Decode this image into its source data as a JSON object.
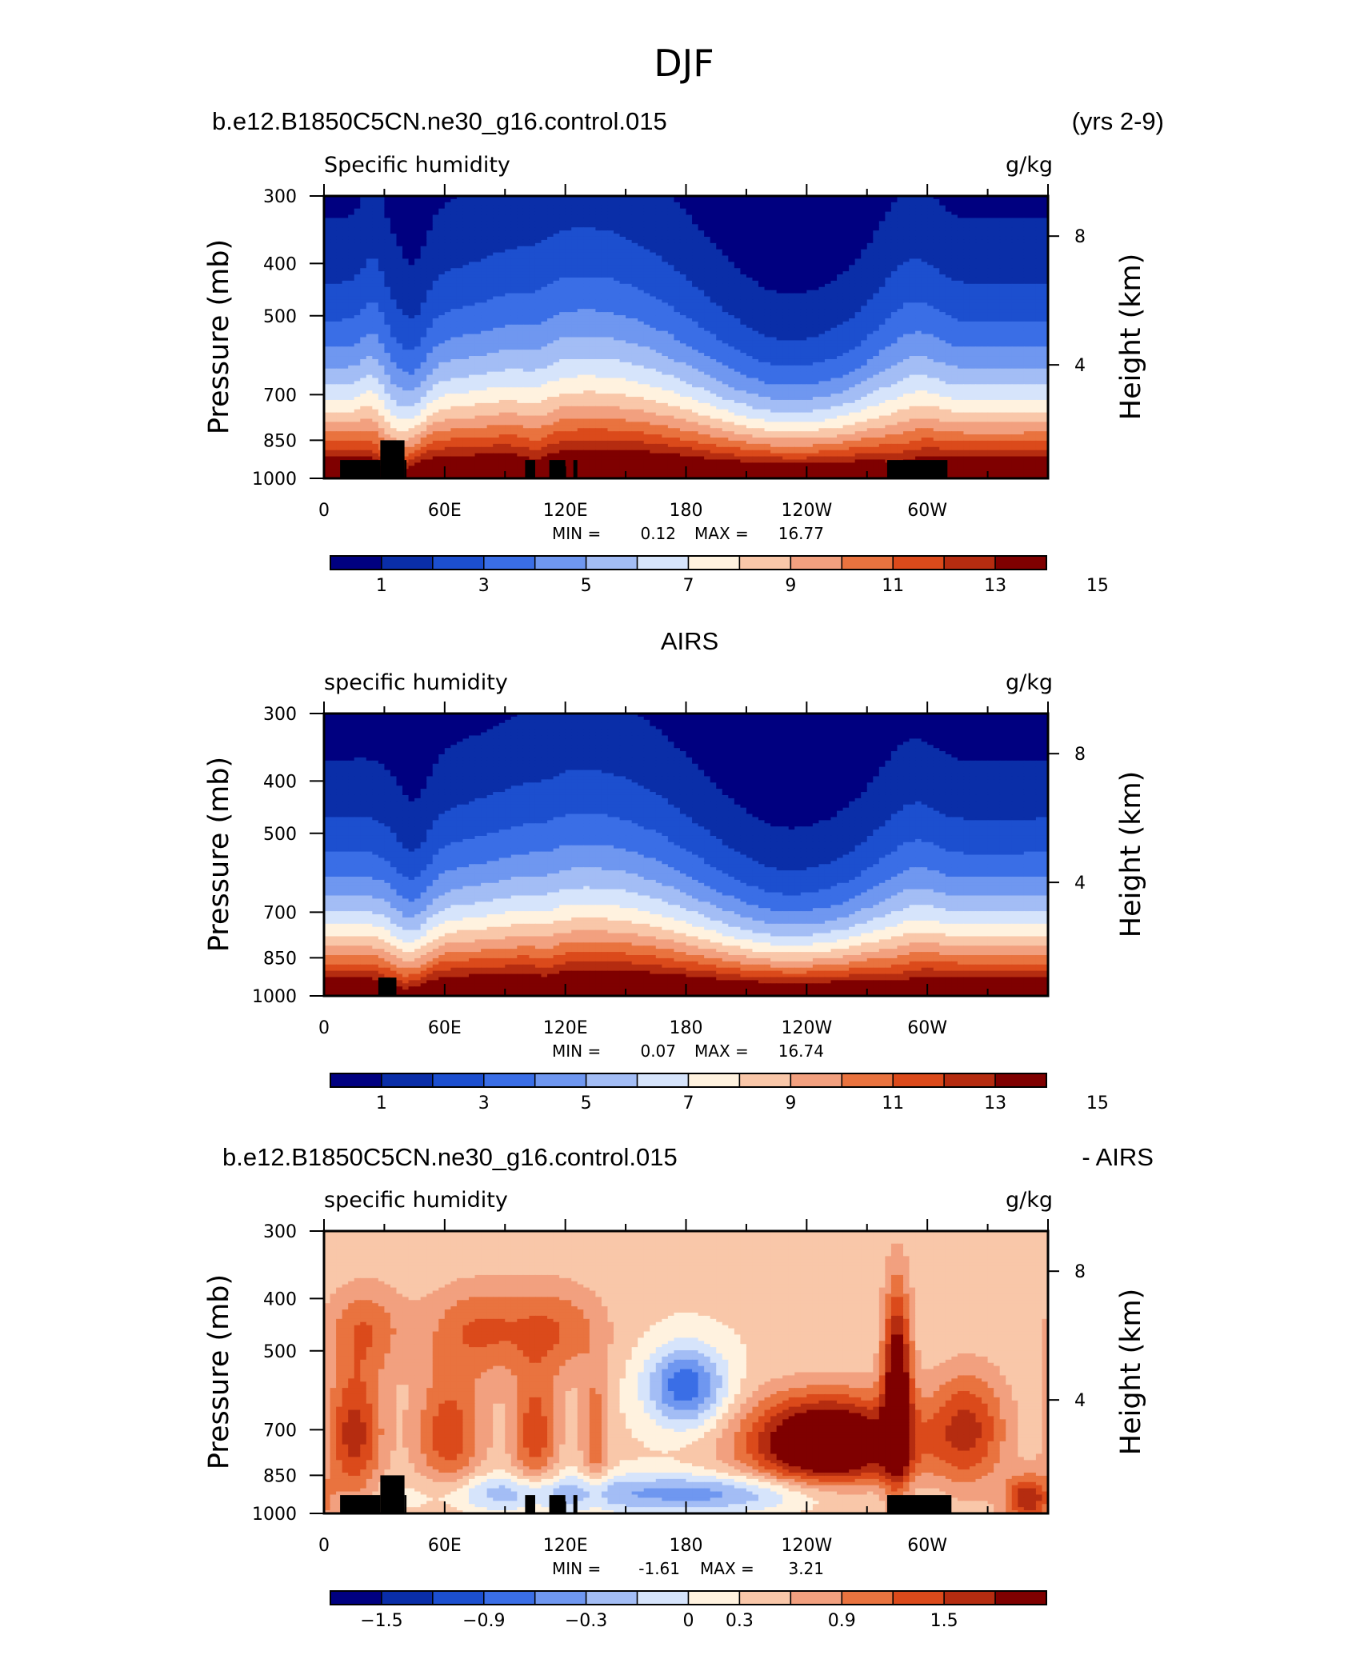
{
  "page": {
    "title": "DJF",
    "case_name": "b.e12.B1850C5CN.ne30_g16.control.015",
    "years": "(yrs 2-9)",
    "obs_title": "AIRS",
    "diff_title_left": "b.e12.B1850C5CN.ne30_g16.control.015",
    "diff_title_right": "- AIRS"
  },
  "colors": {
    "levels_main": [
      "#000080",
      "#0a2ea8",
      "#1c4fcf",
      "#3a6ee6",
      "#6f97f0",
      "#a3bdf5",
      "#d6e4fb",
      "#fff2df",
      "#f9c7a9",
      "#f2a07f",
      "#e9733f",
      "#db4a1b",
      "#b52c10",
      "#7f0000"
    ],
    "levels_diff": [
      "#000080",
      "#0a2ea8",
      "#1c4fcf",
      "#3a6ee6",
      "#6f97f0",
      "#a3bdf5",
      "#d6e4fb",
      "#fff2df",
      "#f9c7a9",
      "#f2a07f",
      "#e9733f",
      "#db4a1b",
      "#b52c10",
      "#7f0000"
    ],
    "terrain": "#000000"
  },
  "chart_data": [
    {
      "type": "heatmap",
      "name_id": "model",
      "left_label": "Specific humidity",
      "right_label": "g/kg",
      "ylabel": "Pressure (mb)",
      "ylabel_right": "Height (km)",
      "x_ticks": [
        "0",
        "60E",
        "120E",
        "180",
        "120W",
        "60W"
      ],
      "x_tick_values": [
        0,
        60,
        120,
        180,
        240,
        300
      ],
      "x_range": [
        0,
        360
      ],
      "y_ticks": [
        "300",
        "400",
        "500",
        "700",
        "850",
        "1000"
      ],
      "y_tick_values": [
        300,
        400,
        500,
        700,
        850,
        1000
      ],
      "y_range_mb": [
        300,
        1000
      ],
      "height_ticks": [
        "8",
        "4"
      ],
      "height_tick_values_km": [
        8,
        4
      ],
      "min_label": "MIN =",
      "min_value": "0.12",
      "max_label": "MAX =",
      "max_value": "16.77",
      "colorbar_labels": [
        "1",
        "3",
        "5",
        "7",
        "9",
        "11",
        "13",
        "15"
      ],
      "colorbar_levels": [
        1,
        2,
        3,
        4,
        5,
        6,
        7,
        8,
        9,
        10,
        11,
        12,
        13,
        14,
        15
      ],
      "terrain_blocks": [
        {
          "lon": [
            8,
            28
          ],
          "p": [
            925,
            1000
          ]
        },
        {
          "lon": [
            28,
            40
          ],
          "p": [
            850,
            1000
          ]
        },
        {
          "lon": [
            40,
            41
          ],
          "p": [
            925,
            1000
          ]
        },
        {
          "lon": [
            100,
            105
          ],
          "p": [
            925,
            1000
          ]
        },
        {
          "lon": [
            112,
            120
          ],
          "p": [
            925,
            1000
          ]
        },
        {
          "lon": [
            124,
            126
          ],
          "p": [
            925,
            1000
          ]
        },
        {
          "lon": [
            280,
            310
          ],
          "p": [
            925,
            1000
          ]
        }
      ]
    },
    {
      "type": "heatmap",
      "name_id": "obs",
      "left_label": "specific humidity",
      "right_label": "g/kg",
      "ylabel": "Pressure (mb)",
      "ylabel_right": "Height (km)",
      "x_ticks": [
        "0",
        "60E",
        "120E",
        "180",
        "120W",
        "60W"
      ],
      "x_tick_values": [
        0,
        60,
        120,
        180,
        240,
        300
      ],
      "x_range": [
        0,
        360
      ],
      "y_ticks": [
        "300",
        "400",
        "500",
        "700",
        "850",
        "1000"
      ],
      "y_tick_values": [
        300,
        400,
        500,
        700,
        850,
        1000
      ],
      "y_range_mb": [
        300,
        1000
      ],
      "height_ticks": [
        "8",
        "4"
      ],
      "height_tick_values_km": [
        8,
        4
      ],
      "min_label": "MIN =",
      "min_value": "0.07",
      "max_label": "MAX =",
      "max_value": "16.74",
      "colorbar_labels": [
        "1",
        "3",
        "5",
        "7",
        "9",
        "11",
        "13",
        "15"
      ],
      "colorbar_levels": [
        1,
        2,
        3,
        4,
        5,
        6,
        7,
        8,
        9,
        10,
        11,
        12,
        13,
        14,
        15
      ],
      "terrain_blocks": [
        {
          "lon": [
            27,
            36
          ],
          "p": [
            925,
            1000
          ]
        }
      ]
    },
    {
      "type": "heatmap",
      "name_id": "diff",
      "left_label": "specific humidity",
      "right_label": "g/kg",
      "ylabel": "Pressure (mb)",
      "ylabel_right": "Height (km)",
      "x_ticks": [
        "0",
        "60E",
        "120E",
        "180",
        "120W",
        "60W"
      ],
      "x_tick_values": [
        0,
        60,
        120,
        180,
        240,
        300
      ],
      "x_range": [
        0,
        360
      ],
      "y_ticks": [
        "300",
        "400",
        "500",
        "700",
        "850",
        "1000"
      ],
      "y_tick_values": [
        300,
        400,
        500,
        700,
        850,
        1000
      ],
      "y_range_mb": [
        300,
        1000
      ],
      "height_ticks": [
        "8",
        "4"
      ],
      "height_tick_values_km": [
        8,
        4
      ],
      "min_label": "MIN =",
      "min_value": "-1.61",
      "max_label": "MAX =",
      "max_value": "3.21",
      "colorbar_labels": [
        "−1.5",
        "−0.9",
        "−0.3",
        "0",
        "0.3",
        "0.9",
        "1.5"
      ],
      "colorbar_label_slots": [
        1,
        3,
        5,
        7,
        8,
        10,
        12
      ],
      "terrain_blocks": [
        {
          "lon": [
            8,
            28
          ],
          "p": [
            925,
            1000
          ]
        },
        {
          "lon": [
            28,
            40
          ],
          "p": [
            850,
            1000
          ]
        },
        {
          "lon": [
            40,
            41
          ],
          "p": [
            925,
            1000
          ]
        },
        {
          "lon": [
            100,
            105
          ],
          "p": [
            925,
            1000
          ]
        },
        {
          "lon": [
            112,
            120
          ],
          "p": [
            925,
            1000
          ]
        },
        {
          "lon": [
            124,
            126
          ],
          "p": [
            925,
            1000
          ]
        },
        {
          "lon": [
            280,
            312
          ],
          "p": [
            925,
            1000
          ]
        }
      ]
    }
  ]
}
